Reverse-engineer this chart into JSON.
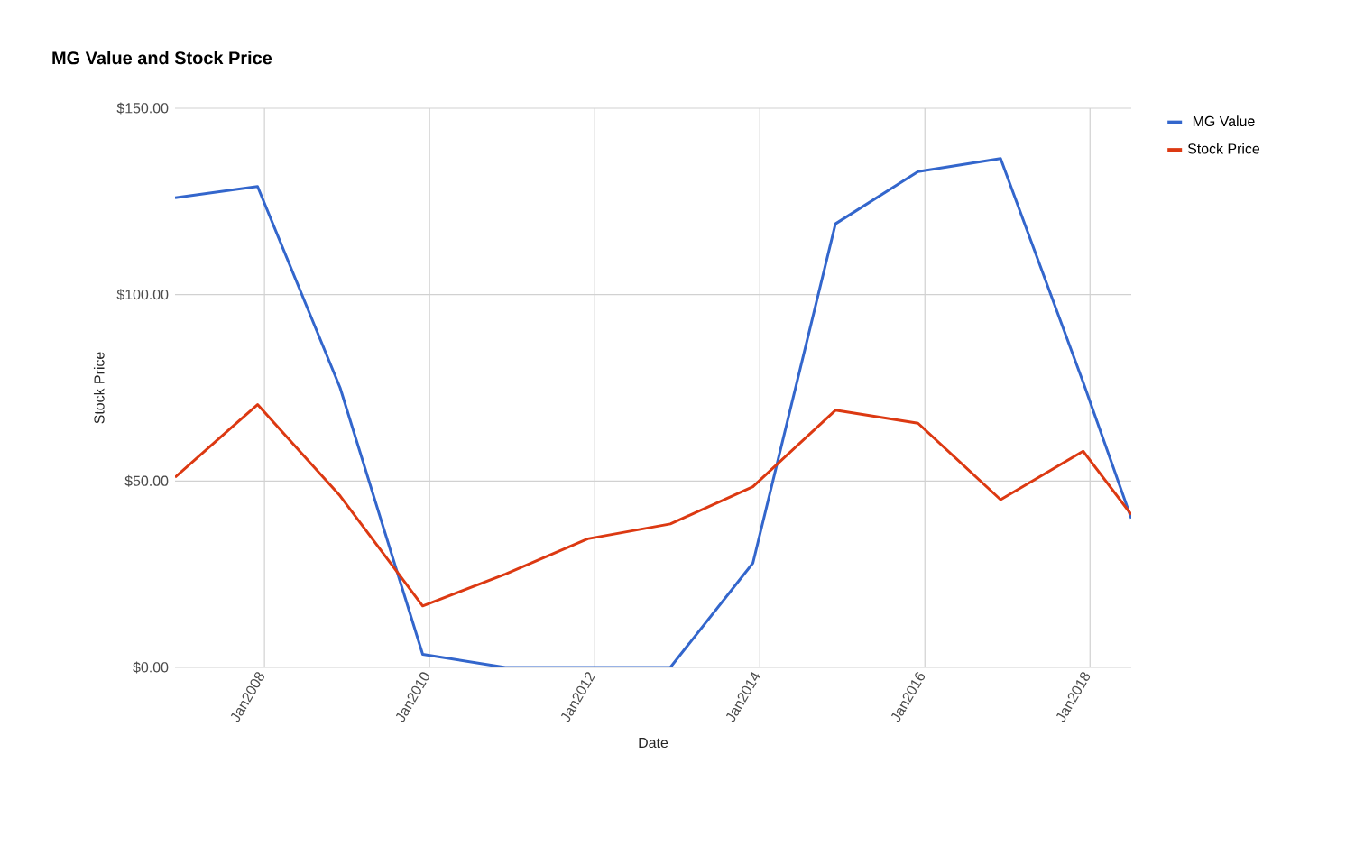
{
  "chart_data": {
    "type": "line",
    "title": "MG Value and Stock Price",
    "xlabel": "Date",
    "ylabel": "Stock Price",
    "x": [
      "2006-12",
      "2007-12",
      "2008-12",
      "2009-12",
      "2010-12",
      "2011-12",
      "2012-12",
      "2013-12",
      "2014-12",
      "2015-12",
      "2016-12",
      "2017-12",
      "2018-07"
    ],
    "series": [
      {
        "name": "MG Value",
        "color": "#3366cc",
        "values": [
          126,
          129,
          75,
          3.5,
          0,
          0,
          0,
          28,
          119,
          133,
          136.5,
          76.5,
          40
        ]
      },
      {
        "name": "Stock Price",
        "color": "#dc3912",
        "values": [
          51,
          70.5,
          46,
          16.5,
          25,
          34.5,
          38.5,
          48.5,
          69,
          65.5,
          45,
          58,
          41
        ]
      }
    ],
    "xlim": [
      "2006-12",
      "2018-07"
    ],
    "xticks": [
      {
        "value": "2008-01",
        "label": "Jan2008"
      },
      {
        "value": "2010-01",
        "label": "Jan2010"
      },
      {
        "value": "2012-01",
        "label": "Jan2012"
      },
      {
        "value": "2014-01",
        "label": "Jan2014"
      },
      {
        "value": "2016-01",
        "label": "Jan2016"
      },
      {
        "value": "2018-01",
        "label": "Jan2018"
      }
    ],
    "ylim": [
      0,
      150
    ],
    "yticks": [
      {
        "value": 0,
        "label": "$0.00"
      },
      {
        "value": 50,
        "label": "$50.00"
      },
      {
        "value": 100,
        "label": "$100.00"
      },
      {
        "value": 150,
        "label": "$150.00"
      }
    ],
    "grid": true,
    "legend": "top right",
    "marker": "none",
    "line_style": "solid"
  }
}
